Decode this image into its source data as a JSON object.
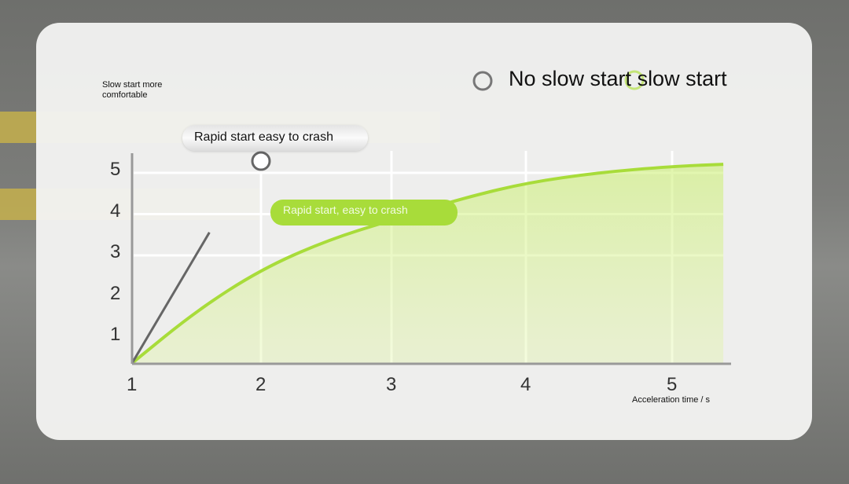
{
  "annotation_top_left": "Slow start more comfortable",
  "legend": [
    {
      "label": "No slow start",
      "color": "#777777"
    },
    {
      "label": "slow start",
      "color": "#a8dc3a"
    }
  ],
  "callout_gray": "Rapid start easy to crash",
  "callout_green": "Rapid start, easy to crash",
  "chart_data": {
    "type": "line",
    "xlabel": "Acceleration time / s",
    "ylabel": "",
    "x_ticks": [
      "1",
      "2",
      "3",
      "4",
      "5"
    ],
    "y_ticks": [
      "1",
      "2",
      "3",
      "4",
      "5"
    ],
    "xlim": [
      1,
      5.4
    ],
    "ylim": [
      0,
      5.3
    ],
    "grid": true,
    "legend_position": "top-right",
    "series": [
      {
        "name": "No slow start",
        "color": "#666666",
        "x": [
          1,
          1.6
        ],
        "y": [
          0.33,
          3.5
        ]
      },
      {
        "name": "slow start",
        "color": "#a8dc3a",
        "fill": true,
        "x": [
          1,
          1.5,
          2,
          2.5,
          3,
          3.5,
          4,
          4.5,
          5,
          5.35
        ],
        "y": [
          0.33,
          1.6,
          2.6,
          3.3,
          3.8,
          4.3,
          4.7,
          4.95,
          5.1,
          5.15
        ]
      }
    ]
  }
}
